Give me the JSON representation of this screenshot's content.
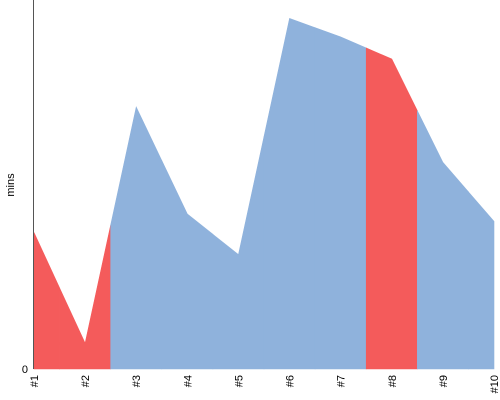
{
  "chart_data": {
    "type": "area",
    "y_label": "mins",
    "categories": [
      "#1",
      "#2",
      "#3",
      "#4",
      "#5",
      "#6",
      "#7",
      "#8",
      "#9",
      "#10"
    ],
    "values": [
      37,
      7,
      71,
      42,
      31,
      95,
      90,
      84,
      56,
      40
    ],
    "colors": [
      "#f45b5b",
      "#f45b5b",
      "#8fb2dc",
      "#8fb2dc",
      "#8fb2dc",
      "#8fb2dc",
      "#8fb2dc",
      "#f45b5b",
      "#8fb2dc",
      "#8fb2dc"
    ],
    "ylim": [
      0,
      100
    ],
    "yticks": [
      0
    ]
  }
}
